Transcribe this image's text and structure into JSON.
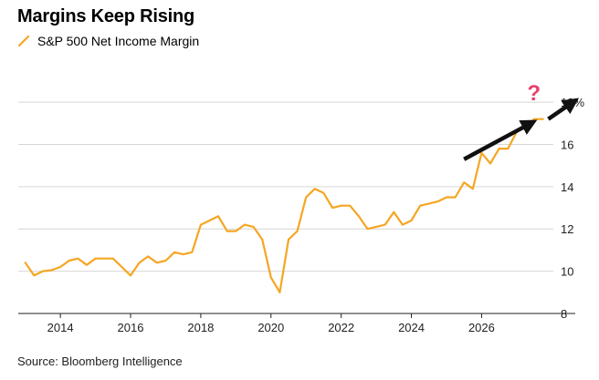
{
  "chart_data": {
    "type": "line",
    "title": "Margins Keep Rising",
    "series": [
      {
        "name": "S&P 500 Net Income Margin",
        "color": "#f5a623",
        "points": [
          [
            2013.0,
            10.4
          ],
          [
            2013.25,
            9.8
          ],
          [
            2013.5,
            10.0
          ],
          [
            2013.75,
            10.05
          ],
          [
            2014.0,
            10.2
          ],
          [
            2014.25,
            10.5
          ],
          [
            2014.5,
            10.6
          ],
          [
            2014.75,
            10.3
          ],
          [
            2015.0,
            10.6
          ],
          [
            2015.25,
            10.6
          ],
          [
            2015.5,
            10.6
          ],
          [
            2015.75,
            10.2
          ],
          [
            2016.0,
            9.8
          ],
          [
            2016.25,
            10.4
          ],
          [
            2016.5,
            10.7
          ],
          [
            2016.75,
            10.4
          ],
          [
            2017.0,
            10.5
          ],
          [
            2017.25,
            10.9
          ],
          [
            2017.5,
            10.8
          ],
          [
            2017.75,
            10.9
          ],
          [
            2018.0,
            12.2
          ],
          [
            2018.25,
            12.4
          ],
          [
            2018.5,
            12.6
          ],
          [
            2018.75,
            11.9
          ],
          [
            2019.0,
            11.9
          ],
          [
            2019.25,
            12.2
          ],
          [
            2019.5,
            12.1
          ],
          [
            2019.75,
            11.5
          ],
          [
            2020.0,
            9.7
          ],
          [
            2020.25,
            9.0
          ],
          [
            2020.5,
            11.5
          ],
          [
            2020.75,
            11.9
          ],
          [
            2021.0,
            13.5
          ],
          [
            2021.25,
            13.9
          ],
          [
            2021.5,
            13.7
          ],
          [
            2021.75,
            13.0
          ],
          [
            2022.0,
            13.1
          ],
          [
            2022.25,
            13.1
          ],
          [
            2022.5,
            12.6
          ],
          [
            2022.75,
            12.0
          ],
          [
            2023.0,
            12.1
          ],
          [
            2023.25,
            12.2
          ],
          [
            2023.5,
            12.8
          ],
          [
            2023.75,
            12.2
          ],
          [
            2024.0,
            12.4
          ],
          [
            2024.25,
            13.1
          ],
          [
            2024.5,
            13.2
          ],
          [
            2024.75,
            13.3
          ],
          [
            2025.0,
            13.5
          ],
          [
            2025.25,
            13.5
          ],
          [
            2025.5,
            14.2
          ],
          [
            2025.75,
            13.9
          ],
          [
            2026.0,
            15.6
          ],
          [
            2026.25,
            15.1
          ],
          [
            2026.5,
            15.8
          ],
          [
            2026.75,
            15.8
          ],
          [
            2027.0,
            16.6
          ],
          [
            2027.25,
            16.8
          ],
          [
            2027.5,
            17.2
          ],
          [
            2027.75,
            17.2
          ]
        ]
      }
    ],
    "xlim": [
      2012.8,
      2028.2
    ],
    "ylim": [
      8,
      19.6
    ],
    "x_ticks": [
      2014,
      2016,
      2018,
      2020,
      2022,
      2024,
      2026
    ],
    "x_tick_labels": [
      "2014",
      "2016",
      "2018",
      "2020",
      "2022",
      "2024",
      "2026"
    ],
    "y_ticks": [
      8,
      10,
      12,
      14,
      16,
      18
    ],
    "y_tick_labels": [
      "8",
      "10",
      "12",
      "14",
      "16",
      "18%"
    ],
    "grid": "horizontal",
    "y_axis_side": "right",
    "legend_position": "top-left",
    "annotations": [
      {
        "type": "arrow",
        "from": [
          2025.5,
          15.3
        ],
        "to": [
          2027.4,
          17.0
        ],
        "color": "#111111"
      },
      {
        "type": "arrow",
        "from": [
          2027.9,
          17.2
        ],
        "to": [
          2028.6,
          18.0
        ],
        "color": "#111111"
      },
      {
        "type": "text",
        "text": "?",
        "at": [
          2027.3,
          18.1
        ],
        "color": "#e8406a"
      }
    ]
  },
  "source": "Source: Bloomberg Intelligence"
}
